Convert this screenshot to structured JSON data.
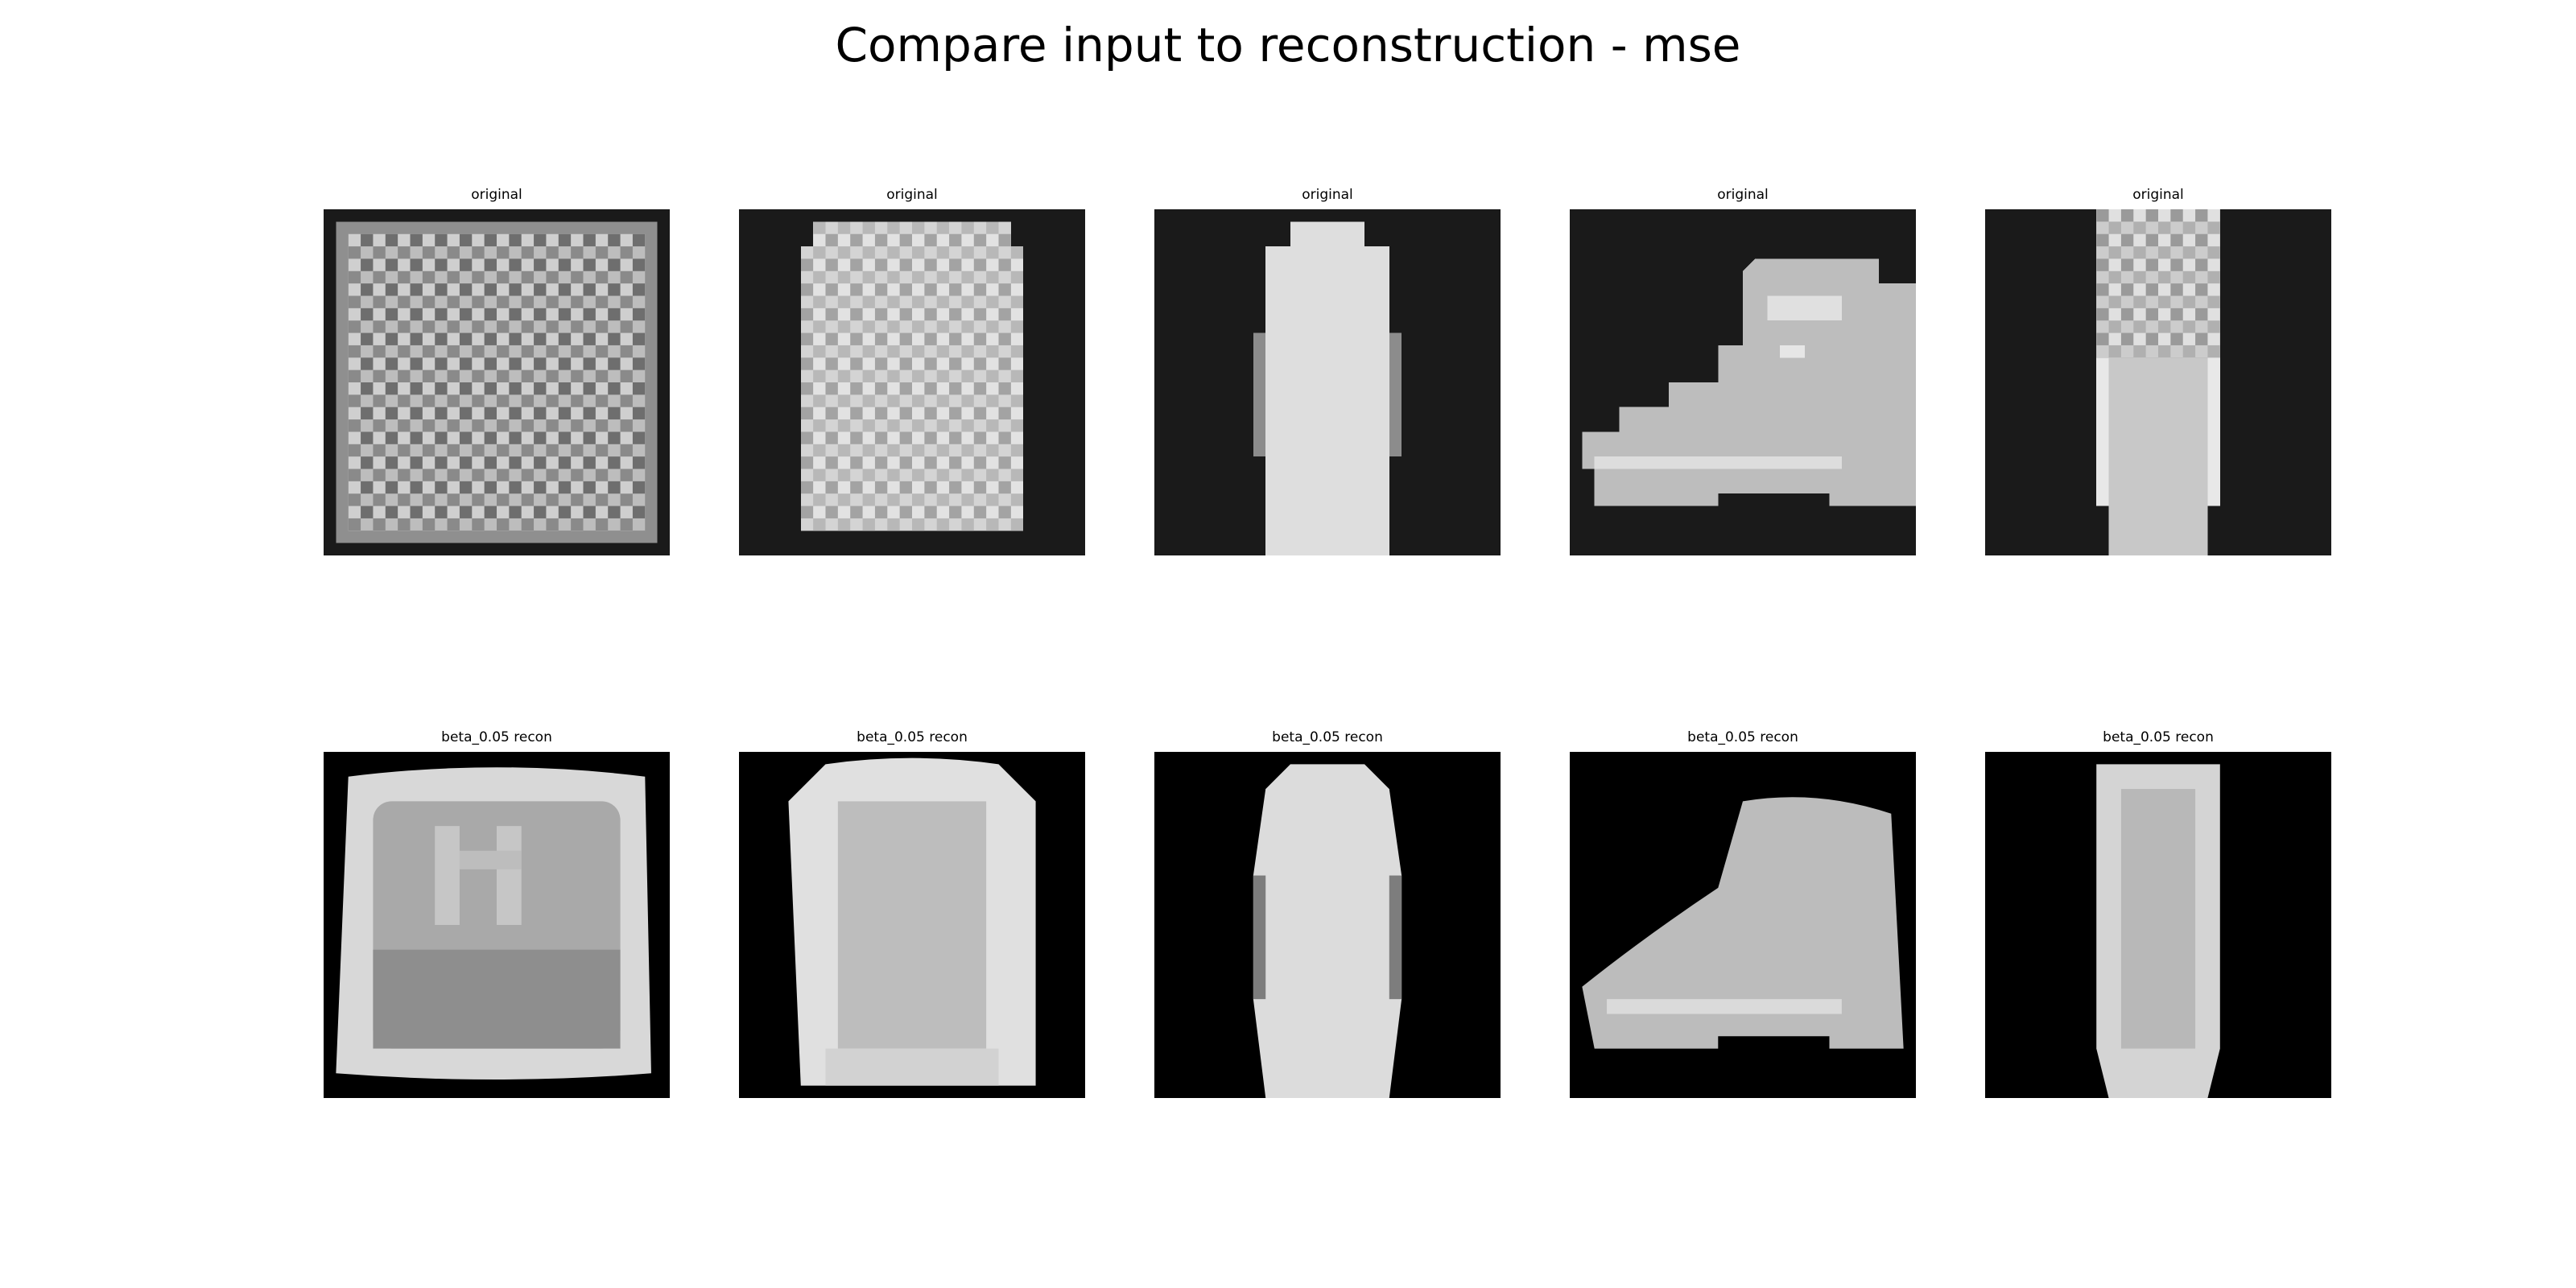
{
  "figure": {
    "title": "Compare input to reconstruction - mse"
  },
  "rows": [
    {
      "panels": [
        {
          "title": "original",
          "subject": "checkered-shirt"
        },
        {
          "title": "original",
          "subject": "patterned-sweater"
        },
        {
          "title": "original",
          "subject": "long-dress"
        },
        {
          "title": "original",
          "subject": "ankle-boot"
        },
        {
          "title": "original",
          "subject": "patterned-dress"
        }
      ]
    },
    {
      "panels": [
        {
          "title": "beta_0.05 recon",
          "subject": "shirt-reconstruction"
        },
        {
          "title": "beta_0.05 recon",
          "subject": "sweater-reconstruction"
        },
        {
          "title": "beta_0.05 recon",
          "subject": "dress-reconstruction"
        },
        {
          "title": "beta_0.05 recon",
          "subject": "boot-reconstruction"
        },
        {
          "title": "beta_0.05 recon",
          "subject": "dress-reconstruction"
        }
      ]
    }
  ],
  "colors": {
    "original_background": "#1a1a1a",
    "recon_background": "#000000",
    "garment_light": "#dcdcdc",
    "garment_mid": "#a8a8a8"
  }
}
